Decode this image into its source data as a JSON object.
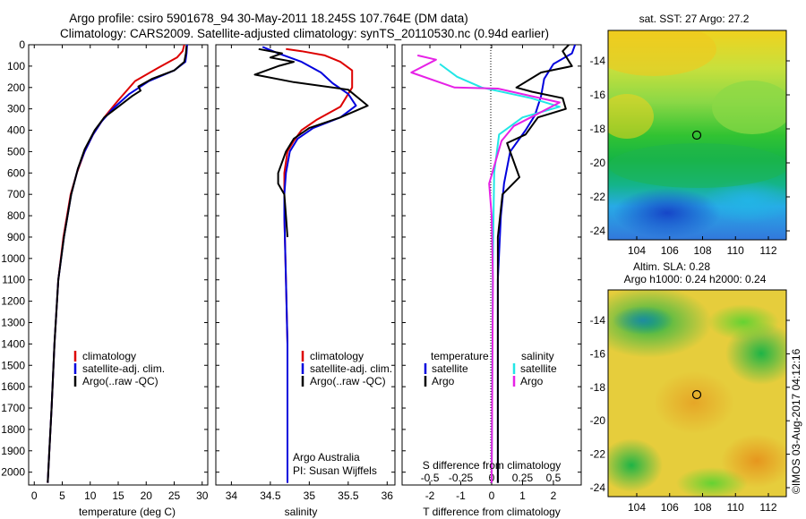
{
  "figure": {
    "title_line1": "Argo profile: csiro 5901678_94 30-May-2011 18.245S 107.764E (DM data)",
    "title_line2": "Climatology: CARS2009. Satellite-adjusted climatology: synTS_20110530.nc (0.94d earlier)",
    "credit": "©IMOS 03-Aug-2017 04:12:16",
    "argo_label_1": "Argo Australia",
    "argo_label_2": "PI: Susan Wijffels"
  },
  "colors": {
    "climatology": "#dd0000",
    "satellite": "#0000dd",
    "argo": "#000000",
    "salinity_sat": "#22e6e6",
    "salinity_argo": "#e622e6"
  },
  "chart_data": [
    {
      "type": "line",
      "name": "temperature",
      "xlabel": "temperature (deg C)",
      "ylabel": "",
      "xlim": [
        -1,
        31
      ],
      "ylim": [
        2060,
        0
      ],
      "xticks": [
        0,
        5,
        10,
        15,
        20,
        25,
        30
      ],
      "xtick_labels": [
        "0",
        "5",
        "10",
        "15",
        "20",
        "25",
        "30"
      ],
      "yticks": [
        0,
        100,
        200,
        300,
        400,
        500,
        600,
        700,
        800,
        900,
        1000,
        1100,
        1200,
        1300,
        1400,
        1500,
        1600,
        1700,
        1800,
        1900,
        2000
      ],
      "ytick_labels": [
        "0",
        "100",
        "200",
        "300",
        "400",
        "500",
        "600",
        "700",
        "800",
        "900",
        "1000",
        "1100",
        "1200",
        "1300",
        "1400",
        "1500",
        "1600",
        "1700",
        "1800",
        "1900",
        "2000"
      ],
      "legend": [
        "climatology",
        "satellite-adj. clim.",
        "Argo(..raw -QC)"
      ],
      "series": [
        {
          "name": "climatology",
          "color": "#dd0000",
          "x": [
            26.8,
            26.5,
            25.5,
            22,
            18,
            15,
            12.5,
            10.5,
            9,
            7.6,
            6.5,
            5.2,
            4.3,
            3.6,
            3.1,
            2.7,
            2.4
          ],
          "y": [
            0,
            30,
            60,
            110,
            170,
            260,
            340,
            420,
            500,
            600,
            700,
            900,
            1100,
            1400,
            1700,
            1900,
            2050
          ]
        },
        {
          "name": "satellite-adj. clim.",
          "color": "#0000dd",
          "x": [
            27.3,
            27.2,
            27,
            25,
            20.5,
            17,
            14,
            12,
            10.5,
            9,
            7.8,
            6.6,
            5.3,
            4.3,
            3.6,
            3.1,
            2.7,
            2.4
          ],
          "y": [
            0,
            40,
            80,
            120,
            170,
            230,
            300,
            360,
            420,
            500,
            580,
            700,
            900,
            1100,
            1400,
            1700,
            1900,
            2050
          ]
        },
        {
          "name": "Argo(..raw -QC)",
          "color": "#000000",
          "x": [
            27.2,
            27.1,
            26.8,
            25,
            21,
            18.6,
            19,
            17.5,
            15,
            12.5,
            10.8,
            9,
            7.8,
            6.6,
            5.3,
            4.3,
            3.6,
            3.1,
            2.7,
            2.4
          ],
          "y": [
            5,
            40,
            80,
            120,
            160,
            195,
            215,
            240,
            290,
            340,
            400,
            490,
            580,
            700,
            900,
            1100,
            1400,
            1700,
            1900,
            2050
          ]
        }
      ]
    },
    {
      "type": "line",
      "name": "salinity",
      "xlabel": "salinity",
      "ylabel": "",
      "xlim": [
        33.8,
        36.1
      ],
      "ylim": [
        2060,
        0
      ],
      "xticks": [
        34,
        34.5,
        35,
        35.5,
        36
      ],
      "xtick_labels": [
        "34",
        "34.5",
        "35",
        "35.5",
        "36"
      ],
      "legend": [
        "climatology",
        "satellite-adj. clim.",
        "Argo(..raw -QC)"
      ],
      "series": [
        {
          "name": "climatology",
          "color": "#dd0000",
          "x": [
            34.7,
            34.9,
            35.2,
            35.4,
            35.55,
            35.55,
            35.4,
            35.1,
            34.9,
            34.8,
            34.72,
            34.68,
            34.68,
            34.7,
            34.72,
            34.72,
            34.72
          ],
          "y": [
            20,
            30,
            50,
            80,
            120,
            200,
            290,
            350,
            400,
            450,
            500,
            600,
            800,
            1100,
            1400,
            1800,
            2050
          ]
        },
        {
          "name": "satellite-adj. clim.",
          "color": "#0000dd",
          "x": [
            34.4,
            34.6,
            34.9,
            35.15,
            35.3,
            35.5,
            35.6,
            35.4,
            35.05,
            34.85,
            34.75,
            34.7,
            34.68,
            34.68,
            34.7,
            34.72,
            34.72,
            34.72
          ],
          "y": [
            10,
            40,
            80,
            130,
            180,
            230,
            285,
            340,
            390,
            440,
            500,
            600,
            700,
            800,
            1100,
            1400,
            1800,
            2050
          ]
        },
        {
          "name": "Argo(..raw -QC)",
          "color": "#000000",
          "x": [
            34.35,
            34.65,
            34.5,
            34.8,
            34.6,
            34.3,
            34.8,
            35.5,
            35.75,
            35.4,
            35.0,
            34.8,
            34.7,
            34.6,
            34.6,
            34.68,
            34.7,
            34.72
          ],
          "y": [
            20,
            40,
            60,
            80,
            100,
            140,
            175,
            210,
            285,
            340,
            390,
            440,
            500,
            600,
            650,
            700,
            800,
            900
          ]
        }
      ]
    },
    {
      "type": "line",
      "name": "difference",
      "xlabel": "T difference from climatology",
      "xlabel_top": "S difference from climatology",
      "xlim": [
        -2.9,
        2.9
      ],
      "ylim": [
        2060,
        0
      ],
      "xticks": [
        -2,
        -1,
        0,
        1,
        2
      ],
      "xtick_labels": [
        "-2",
        "-1",
        "0",
        "1",
        "2"
      ],
      "xticks_s": [
        -0.5,
        -0.25,
        0,
        0.25,
        0.5
      ],
      "xtick_s_labels": [
        "-0.5",
        "-0.25",
        "0",
        "0.25",
        "0.5"
      ],
      "s_scale": 4,
      "legend_temperature_title": "temperature",
      "legend_salinity_title": "salinity",
      "legend_items": [
        "satellite",
        "Argo"
      ],
      "series": [
        {
          "name": "temperature satellite",
          "color": "#0000dd",
          "x": [
            2.7,
            2.6,
            2.0,
            1.7,
            1.6,
            1.4,
            1.1,
            0.6,
            0.4,
            0.3,
            0.2,
            0.2,
            0.2
          ],
          "y": [
            0,
            40,
            90,
            160,
            240,
            330,
            400,
            500,
            650,
            800,
            1100,
            1600,
            2050
          ]
        },
        {
          "name": "temperature Argo",
          "color": "#000000",
          "x": [
            2.5,
            2.3,
            2.6,
            1.6,
            0.8,
            1.3,
            2.3,
            2.4,
            1.5,
            1.1,
            0.5,
            0.9,
            0.35,
            0.2,
            0.2,
            0.2
          ],
          "y": [
            0,
            30,
            100,
            130,
            200,
            220,
            250,
            300,
            340,
            420,
            460,
            620,
            700,
            900,
            1400,
            2050
          ]
        },
        {
          "name": "salinity satellite",
          "color": "#22e6e6",
          "x": [
            -0.42,
            -0.28,
            -0.08,
            0.32,
            0.55,
            0.25,
            0.06,
            0.02,
            0.01,
            0.0
          ],
          "y": [
            90,
            150,
            200,
            250,
            290,
            340,
            420,
            600,
            1000,
            2050
          ]
        },
        {
          "name": "salinity Argo",
          "color": "#e622e6",
          "x": [
            -0.6,
            -0.45,
            -0.65,
            -0.3,
            0.05,
            0.55,
            0.35,
            0.18,
            0.08,
            -0.02,
            0.0,
            0.01,
            0.0
          ],
          "y": [
            50,
            70,
            130,
            200,
            205,
            270,
            330,
            380,
            450,
            650,
            800,
            1100,
            2050
          ]
        }
      ]
    }
  ],
  "maps": [
    {
      "name": "sst",
      "title": "sat. SST: 27 Argo: 27.2",
      "yticks": [
        "-14",
        "-16",
        "-18",
        "-20",
        "-22",
        "-24"
      ],
      "xticks": [
        "104",
        "106",
        "108",
        "110",
        "112"
      ],
      "marker": [
        107.764,
        -18.245
      ]
    },
    {
      "name": "sla",
      "title_line1": "Altim. SLA: 0.28",
      "title_line2": "Argo h1000: 0.24 h2000: 0.24",
      "yticks": [
        "-14",
        "-16",
        "-18",
        "-20",
        "-22",
        "-24"
      ],
      "xticks": [
        "104",
        "106",
        "108",
        "110",
        "112"
      ],
      "marker": [
        107.764,
        -18.245
      ]
    }
  ]
}
